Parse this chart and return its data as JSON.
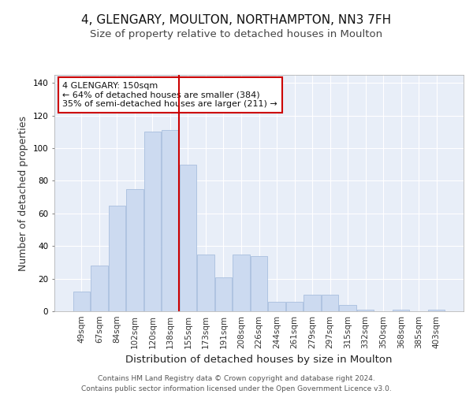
{
  "title": "4, GLENGARY, MOULTON, NORTHAMPTON, NN3 7FH",
  "subtitle": "Size of property relative to detached houses in Moulton",
  "xlabel": "Distribution of detached houses by size in Moulton",
  "ylabel": "Number of detached properties",
  "bar_labels": [
    "49sqm",
    "67sqm",
    "84sqm",
    "102sqm",
    "120sqm",
    "138sqm",
    "155sqm",
    "173sqm",
    "191sqm",
    "208sqm",
    "226sqm",
    "244sqm",
    "261sqm",
    "279sqm",
    "297sqm",
    "315sqm",
    "332sqm",
    "350sqm",
    "368sqm",
    "385sqm",
    "403sqm"
  ],
  "bar_values": [
    12,
    28,
    65,
    75,
    110,
    111,
    90,
    35,
    21,
    35,
    34,
    6,
    6,
    10,
    10,
    4,
    1,
    0,
    1,
    0,
    1
  ],
  "bar_color": "#ccdaf0",
  "bar_edge_color": "#a8bede",
  "vline_index": 6,
  "vline_color": "#cc0000",
  "annotation_text": "4 GLENGARY: 150sqm\n← 64% of detached houses are smaller (384)\n35% of semi-detached houses are larger (211) →",
  "annotation_box_color": "#ffffff",
  "annotation_box_edge_color": "#cc0000",
  "ylim": [
    0,
    145
  ],
  "yticks": [
    0,
    20,
    40,
    60,
    80,
    100,
    120,
    140
  ],
  "background_color": "#e8eef8",
  "grid_color": "#ffffff",
  "footer_text": "Contains HM Land Registry data © Crown copyright and database right 2024.\nContains public sector information licensed under the Open Government Licence v3.0.",
  "title_fontsize": 11,
  "subtitle_fontsize": 9.5,
  "ylabel_fontsize": 9,
  "xlabel_fontsize": 9.5,
  "tick_fontsize": 7.5,
  "annotation_fontsize": 8,
  "footer_fontsize": 6.5
}
